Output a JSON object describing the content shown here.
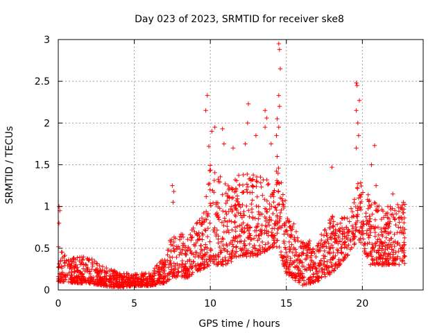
{
  "chart_data": {
    "type": "scatter",
    "title": "Day 023 of 2023, SRMTID for receiver ske8",
    "xlabel": "GPS time / hours",
    "ylabel": "SRMTID / TECUs",
    "xlim": [
      0,
      24
    ],
    "ylim": [
      0,
      3
    ],
    "xticks": [
      0,
      5,
      10,
      15,
      20
    ],
    "yticks": [
      0,
      0.5,
      1,
      1.5,
      2,
      2.5,
      3
    ],
    "xtick_labels": [
      "0",
      "5",
      "10",
      "15",
      "20"
    ],
    "ytick_labels": [
      "0",
      "0.5",
      "1",
      "1.5",
      "2",
      "2.5",
      "3"
    ],
    "grid": true,
    "marker": "plus",
    "series_color": "#ff0000",
    "envelope": [
      {
        "x": 0.0,
        "low": 0.1,
        "high": 0.55
      },
      {
        "x": 0.5,
        "low": 0.1,
        "high": 0.4
      },
      {
        "x": 1.0,
        "low": 0.08,
        "high": 0.4
      },
      {
        "x": 2.0,
        "low": 0.08,
        "high": 0.4
      },
      {
        "x": 3.0,
        "low": 0.05,
        "high": 0.3
      },
      {
        "x": 4.0,
        "low": 0.03,
        "high": 0.2
      },
      {
        "x": 5.0,
        "low": 0.05,
        "high": 0.2
      },
      {
        "x": 6.0,
        "low": 0.05,
        "high": 0.2
      },
      {
        "x": 7.0,
        "low": 0.08,
        "high": 0.4
      },
      {
        "x": 7.5,
        "low": 0.15,
        "high": 0.7
      },
      {
        "x": 8.5,
        "low": 0.15,
        "high": 0.65
      },
      {
        "x": 9.5,
        "low": 0.25,
        "high": 0.9
      },
      {
        "x": 10.0,
        "low": 0.3,
        "high": 1.5
      },
      {
        "x": 11.0,
        "low": 0.3,
        "high": 1.3
      },
      {
        "x": 12.0,
        "low": 0.4,
        "high": 1.4
      },
      {
        "x": 13.0,
        "low": 0.4,
        "high": 1.4
      },
      {
        "x": 14.0,
        "low": 0.5,
        "high": 1.3
      },
      {
        "x": 14.5,
        "low": 0.5,
        "high": 1.5
      },
      {
        "x": 15.0,
        "low": 0.2,
        "high": 1.0
      },
      {
        "x": 16.0,
        "low": 0.05,
        "high": 0.6
      },
      {
        "x": 17.0,
        "low": 0.1,
        "high": 0.6
      },
      {
        "x": 18.0,
        "low": 0.2,
        "high": 0.9
      },
      {
        "x": 19.0,
        "low": 0.4,
        "high": 0.9
      },
      {
        "x": 19.8,
        "low": 0.6,
        "high": 1.4
      },
      {
        "x": 20.5,
        "low": 0.3,
        "high": 1.1
      },
      {
        "x": 21.5,
        "low": 0.3,
        "high": 1.0
      },
      {
        "x": 22.8,
        "low": 0.3,
        "high": 1.05
      }
    ],
    "notable_points": [
      {
        "x": 0.05,
        "y": 1.0
      },
      {
        "x": 0.1,
        "y": 0.95
      },
      {
        "x": 0.05,
        "y": 0.8
      },
      {
        "x": 7.5,
        "y": 1.25
      },
      {
        "x": 7.6,
        "y": 1.18
      },
      {
        "x": 7.55,
        "y": 1.05
      },
      {
        "x": 9.8,
        "y": 2.33
      },
      {
        "x": 9.7,
        "y": 2.15
      },
      {
        "x": 10.3,
        "y": 1.95
      },
      {
        "x": 10.1,
        "y": 1.9
      },
      {
        "x": 10.8,
        "y": 1.93
      },
      {
        "x": 10.9,
        "y": 1.75
      },
      {
        "x": 9.9,
        "y": 1.72
      },
      {
        "x": 11.5,
        "y": 1.7
      },
      {
        "x": 12.5,
        "y": 2.23
      },
      {
        "x": 12.45,
        "y": 2.0
      },
      {
        "x": 13.0,
        "y": 1.85
      },
      {
        "x": 13.6,
        "y": 2.15
      },
      {
        "x": 13.7,
        "y": 2.06
      },
      {
        "x": 13.6,
        "y": 1.95
      },
      {
        "x": 12.3,
        "y": 1.75
      },
      {
        "x": 14.0,
        "y": 1.75
      },
      {
        "x": 14.5,
        "y": 2.95
      },
      {
        "x": 14.55,
        "y": 2.88
      },
      {
        "x": 14.6,
        "y": 2.65
      },
      {
        "x": 14.5,
        "y": 2.33
      },
      {
        "x": 14.55,
        "y": 2.2
      },
      {
        "x": 14.4,
        "y": 2.05
      },
      {
        "x": 14.5,
        "y": 1.95
      },
      {
        "x": 14.35,
        "y": 1.85
      },
      {
        "x": 14.4,
        "y": 1.6
      },
      {
        "x": 18.0,
        "y": 1.47
      },
      {
        "x": 19.6,
        "y": 2.48
      },
      {
        "x": 19.65,
        "y": 2.45
      },
      {
        "x": 19.8,
        "y": 2.27
      },
      {
        "x": 19.6,
        "y": 2.15
      },
      {
        "x": 19.7,
        "y": 2.0
      },
      {
        "x": 19.75,
        "y": 1.85
      },
      {
        "x": 19.6,
        "y": 1.7
      },
      {
        "x": 20.8,
        "y": 1.73
      },
      {
        "x": 20.6,
        "y": 1.5
      },
      {
        "x": 20.9,
        "y": 1.25
      },
      {
        "x": 22.0,
        "y": 1.15
      },
      {
        "x": 22.7,
        "y": 1.05
      }
    ],
    "random_seed": 23,
    "density_per_hour": 95
  }
}
